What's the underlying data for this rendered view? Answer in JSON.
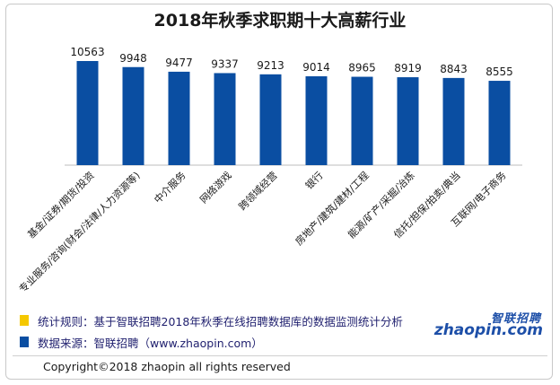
{
  "chart_data": {
    "type": "bar",
    "title": "2018年秋季求职期十大高薪行业",
    "categories": [
      "基金/证券/期货/投资",
      "专业服务/咨询(财会/法律/人力资源等)",
      "中介服务",
      "网络游戏",
      "跨领域经营",
      "银行",
      "房地产/建筑/建材/工程",
      "能源/矿产/采掘/冶炼",
      "信托/担保/拍卖/典当",
      "互联网/电子商务"
    ],
    "values": [
      10563,
      9948,
      9477,
      9337,
      9213,
      9014,
      8965,
      8919,
      8843,
      8555
    ],
    "ylim": [
      0,
      11000
    ],
    "grid": false,
    "bar_color": "#0a4ea2",
    "data_labels": true
  },
  "legend": {
    "note1": {
      "text": "统计规则：基于智联招聘2018年秋季在线招聘数据库的数据监测统计分析",
      "color": "#f5c800"
    },
    "note2": {
      "text": "数据来源：智联招聘（www.zhaopin.com）",
      "color": "#0a4ea2"
    }
  },
  "logo": {
    "cn": "智联招聘",
    "en": "zhaopin.com"
  },
  "footer": {
    "copyright": "Copyright©2018 zhaopin all rights reserved"
  }
}
